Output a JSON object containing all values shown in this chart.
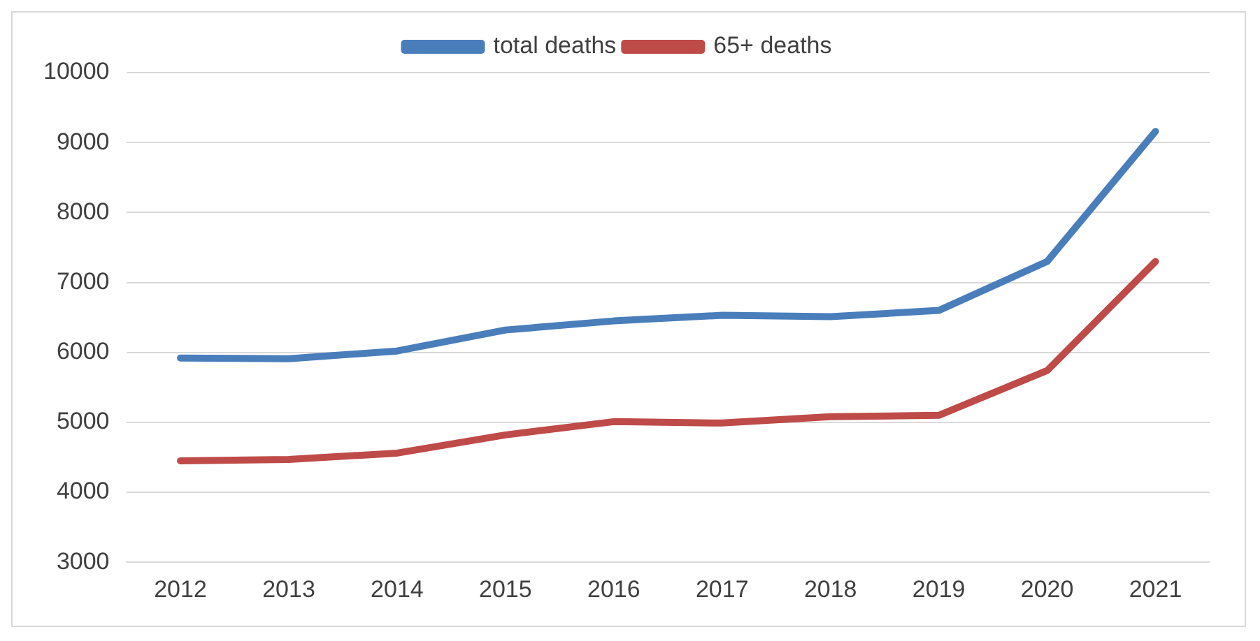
{
  "chart_data": {
    "type": "line",
    "categories": [
      "2012",
      "2013",
      "2014",
      "2015",
      "2016",
      "2017",
      "2018",
      "2019",
      "2020",
      "2021"
    ],
    "series": [
      {
        "name": "total deaths",
        "color": "#4a7ebb",
        "values": [
          5920,
          5910,
          6020,
          6320,
          6450,
          6530,
          6510,
          6600,
          7300,
          9160
        ]
      },
      {
        "name": "65+ deaths",
        "color": "#be4b48",
        "values": [
          4450,
          4470,
          4560,
          4820,
          5010,
          4990,
          5080,
          5100,
          5740,
          7300
        ]
      }
    ],
    "ylim": [
      3000,
      10000
    ],
    "yticks": [
      3000,
      4000,
      5000,
      6000,
      7000,
      8000,
      9000,
      10000
    ],
    "grid": "y",
    "legend": "top",
    "marker": "none",
    "line_style": "solid"
  }
}
